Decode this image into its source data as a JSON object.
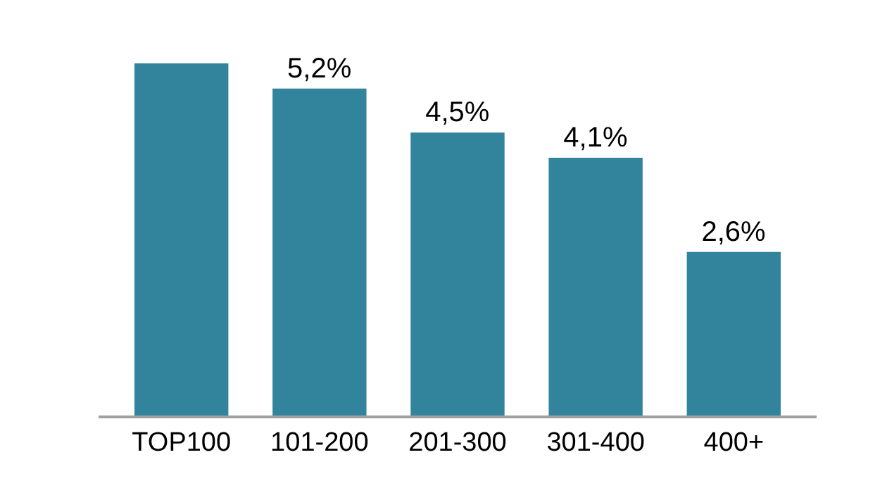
{
  "chart_data": {
    "type": "bar",
    "categories": [
      "TOP100",
      "101-200",
      "201-300",
      "301-400",
      "400+"
    ],
    "values": [
      5.6,
      5.2,
      4.5,
      4.1,
      2.6
    ],
    "value_labels": [
      null,
      "5,2%",
      "4,5%",
      "4,1%",
      "2,6%"
    ],
    "color": "#31849b"
  }
}
